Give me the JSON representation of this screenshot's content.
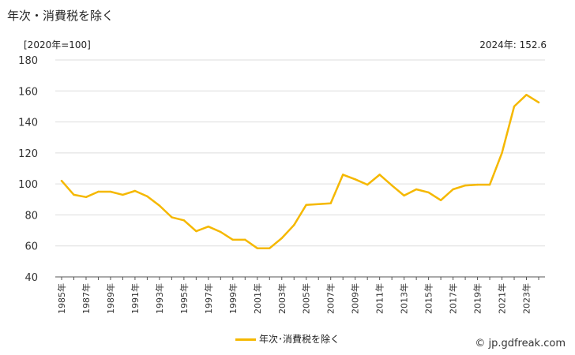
{
  "header": {
    "title": "年次・消費税を除く",
    "unit": "[2020年=100]",
    "latest": "2024年: 152.6"
  },
  "legend": {
    "label": "年次･消費税を除く"
  },
  "credit": "© jp.gdfreak.com",
  "colors": {
    "line": "#f5b800",
    "grid": "#dddddd",
    "axis": "#555555"
  },
  "chart_data": {
    "type": "line",
    "title": "年次・消費税を除く",
    "ylabel": "[2020年=100]",
    "ylim": [
      40,
      180
    ],
    "yticks": [
      40,
      60,
      80,
      100,
      120,
      140,
      160,
      180
    ],
    "grid": true,
    "legend_position": "bottom",
    "x_tick_labels": [
      "1985年",
      "1987年",
      "1989年",
      "1991年",
      "1993年",
      "1995年",
      "1997年",
      "1999年",
      "2001年",
      "2003年",
      "2005年",
      "2007年",
      "2009年",
      "2011年",
      "2013年",
      "2015年",
      "2017年",
      "2019年",
      "2021年",
      "2023年"
    ],
    "x": [
      1985,
      1986,
      1987,
      1988,
      1989,
      1990,
      1991,
      1992,
      1993,
      1994,
      1995,
      1996,
      1997,
      1998,
      1999,
      2000,
      2001,
      2002,
      2003,
      2004,
      2005,
      2006,
      2007,
      2008,
      2009,
      2010,
      2011,
      2012,
      2013,
      2014,
      2015,
      2016,
      2017,
      2018,
      2019,
      2020,
      2021,
      2022,
      2023,
      2024
    ],
    "series": [
      {
        "name": "年次･消費税を除く",
        "values": [
          102,
          93,
          91.5,
          95,
          95,
          93,
          95.5,
          92,
          86,
          78.5,
          76.5,
          69.5,
          72.5,
          69,
          64,
          64,
          58.5,
          58.5,
          65,
          73.5,
          86.5,
          87,
          87.5,
          106,
          103,
          99.5,
          106,
          99,
          92.5,
          96.5,
          94.5,
          89.5,
          96.5,
          99,
          99.5,
          99.5,
          120,
          150,
          157.5,
          152.6
        ]
      }
    ]
  }
}
